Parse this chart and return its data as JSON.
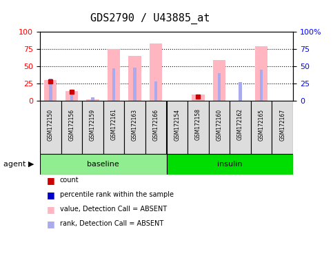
{
  "title": "GDS2790 / U43885_at",
  "samples": [
    "GSM172150",
    "GSM172156",
    "GSM172159",
    "GSM172161",
    "GSM172163",
    "GSM172166",
    "GSM172154",
    "GSM172158",
    "GSM172160",
    "GSM172162",
    "GSM172165",
    "GSM172167"
  ],
  "groups": [
    {
      "name": "baseline",
      "color": "#90EE90",
      "samples": 6
    },
    {
      "name": "insulin",
      "color": "#00CC00",
      "samples": 6
    }
  ],
  "pink_bars": [
    30,
    14,
    2,
    75,
    65,
    83,
    0,
    9,
    59,
    0,
    79,
    0
  ],
  "blue_bars": [
    32,
    12,
    5,
    47,
    48,
    28,
    0,
    0,
    40,
    27,
    45,
    0
  ],
  "red_squares": [
    28,
    13,
    0,
    0,
    0,
    0,
    0,
    6,
    0,
    0,
    0,
    0
  ],
  "blue_squares": [
    0,
    0,
    0,
    0,
    0,
    0,
    0,
    0,
    0,
    0,
    0,
    0
  ],
  "ylim": [
    0,
    100
  ],
  "yticks": [
    0,
    25,
    50,
    75,
    100
  ],
  "ylabel_left": "",
  "ylabel_right": "",
  "legend": [
    {
      "label": "count",
      "color": "#CC0000",
      "marker": "s"
    },
    {
      "label": "percentile rank within the sample",
      "color": "#0000CC",
      "marker": "s"
    },
    {
      "label": "value, Detection Call = ABSENT",
      "color": "#FFB6C1",
      "marker": "s"
    },
    {
      "label": "rank, Detection Call = ABSENT",
      "color": "#AAAAFF",
      "marker": "s"
    }
  ]
}
